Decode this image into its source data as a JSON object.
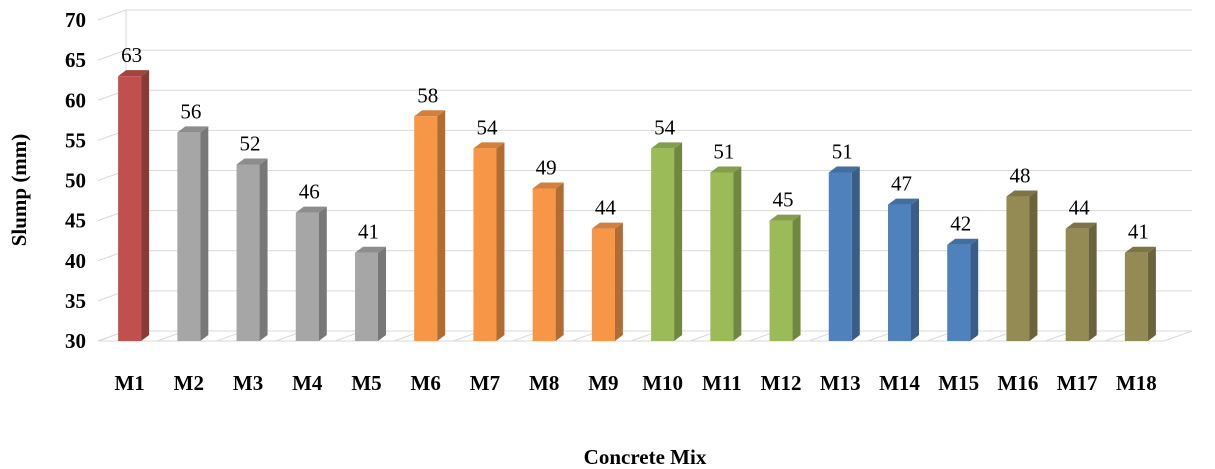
{
  "chart_data": {
    "type": "bar",
    "style": "3d-column",
    "title": "",
    "xlabel": "Concrete Mix",
    "ylabel": "Slump (mm)",
    "ylim": [
      30,
      70
    ],
    "yticks": [
      30,
      35,
      40,
      45,
      50,
      55,
      60,
      65,
      70
    ],
    "grid": true,
    "legend": "none",
    "categories": [
      "M1",
      "M2",
      "M3",
      "M4",
      "M5",
      "M6",
      "M7",
      "M8",
      "M9",
      "M10",
      "M11",
      "M12",
      "M13",
      "M14",
      "M15",
      "M16",
      "M17",
      "M18"
    ],
    "values": [
      63,
      56,
      52,
      46,
      41,
      58,
      54,
      49,
      44,
      54,
      51,
      45,
      51,
      47,
      42,
      48,
      44,
      41
    ],
    "bar_colors": [
      "#c0504d",
      "#a6a6a6",
      "#a6a6a6",
      "#a6a6a6",
      "#a6a6a6",
      "#f79646",
      "#f79646",
      "#f79646",
      "#f79646",
      "#9bbb59",
      "#9bbb59",
      "#9bbb59",
      "#4f81bd",
      "#4f81bd",
      "#4f81bd",
      "#948a54",
      "#948a54",
      "#948a54"
    ]
  }
}
